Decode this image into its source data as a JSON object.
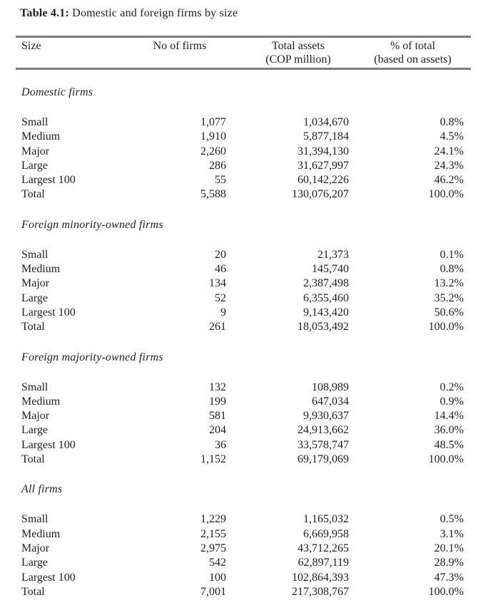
{
  "caption": {
    "label": "Table 4.1:",
    "text": " Domestic and foreign firms by size"
  },
  "columns": {
    "size": "Size",
    "firms": "No of firms",
    "assets_line1": "Total assets",
    "assets_line2": "(COP million)",
    "pct_line1": "% of total",
    "pct_line2": "(based on assets)"
  },
  "sections": [
    {
      "name": "Domestic firms",
      "rows": [
        {
          "label": "Small",
          "firms": "1,077",
          "assets": "1,034,670",
          "pct": "0.8%"
        },
        {
          "label": "Medium",
          "firms": "1,910",
          "assets": "5,877,184",
          "pct": "4.5%"
        },
        {
          "label": "Major",
          "firms": "2,260",
          "assets": "31,394,130",
          "pct": "24.1%"
        },
        {
          "label": "Large",
          "firms": "286",
          "assets": "31,627,997",
          "pct": "24.3%"
        },
        {
          "label": "Largest 100",
          "firms": "55",
          "assets": "60,142,226",
          "pct": "46.2%"
        },
        {
          "label": "Total",
          "firms": "5,588",
          "assets": "130,076,207",
          "pct": "100.0%"
        }
      ]
    },
    {
      "name": "Foreign minority-owned firms",
      "rows": [
        {
          "label": "Small",
          "firms": "20",
          "assets": "21,373",
          "pct": "0.1%"
        },
        {
          "label": "Medium",
          "firms": "46",
          "assets": "145,740",
          "pct": "0.8%"
        },
        {
          "label": "Major",
          "firms": "134",
          "assets": "2,387,498",
          "pct": "13.2%"
        },
        {
          "label": "Large",
          "firms": "52",
          "assets": "6,355,460",
          "pct": "35.2%"
        },
        {
          "label": "Largest 100",
          "firms": "9",
          "assets": "9,143,420",
          "pct": "50.6%"
        },
        {
          "label": "Total",
          "firms": "261",
          "assets": "18,053,492",
          "pct": "100.0%"
        }
      ]
    },
    {
      "name": "Foreign majority-owned firms",
      "rows": [
        {
          "label": "Small",
          "firms": "132",
          "assets": "108,989",
          "pct": "0.2%"
        },
        {
          "label": "Medium",
          "firms": "199",
          "assets": "647,034",
          "pct": "0.9%"
        },
        {
          "label": "Major",
          "firms": "581",
          "assets": "9,930,637",
          "pct": "14.4%"
        },
        {
          "label": "Large",
          "firms": "204",
          "assets": "24,913,662",
          "pct": "36.0%"
        },
        {
          "label": "Largest 100",
          "firms": "36",
          "assets": "33,578,747",
          "pct": "48.5%"
        },
        {
          "label": "Total",
          "firms": "1,152",
          "assets": "69,179,069",
          "pct": "100.0%"
        }
      ]
    },
    {
      "name": "All firms",
      "rows": [
        {
          "label": "Small",
          "firms": "1,229",
          "assets": "1,165,032",
          "pct": "0.5%"
        },
        {
          "label": "Medium",
          "firms": "2,155",
          "assets": "6,669,958",
          "pct": "3.1%"
        },
        {
          "label": "Major",
          "firms": "2,975",
          "assets": "43,712,265",
          "pct": "20.1%"
        },
        {
          "label": "Large",
          "firms": "542",
          "assets": "62,897,119",
          "pct": "28.9%"
        },
        {
          "label": "Largest 100",
          "firms": "100",
          "assets": "102,864,393",
          "pct": "47.3%"
        },
        {
          "label": "Total",
          "firms": "7,001",
          "assets": "217,308,767",
          "pct": "100.0%"
        }
      ]
    }
  ]
}
